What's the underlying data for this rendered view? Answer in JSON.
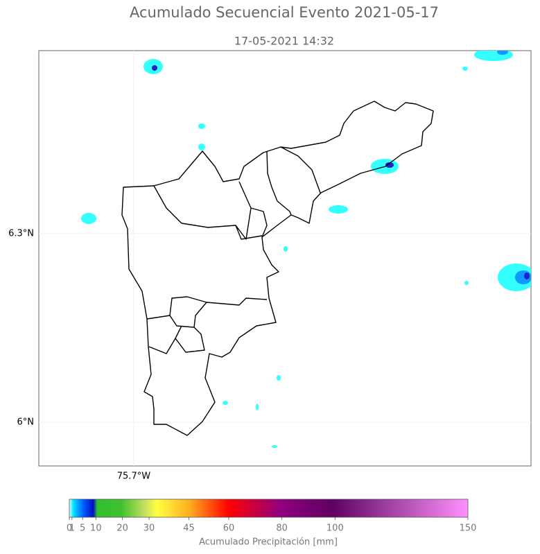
{
  "title": "Acumulado Secuencial Evento 2021-05-17",
  "subtitle": "17-05-2021 14:32",
  "map": {
    "xlim": [
      -75.851,
      -75.068
    ],
    "ylim": [
      5.9305,
      6.591
    ],
    "xticks": [
      {
        "value": -75.7,
        "label": "75.7°W"
      }
    ],
    "yticks": [
      {
        "value": 6.3,
        "label": "6.3°N"
      },
      {
        "value": 6,
        "label": "6°N"
      }
    ],
    "grid": true
  },
  "colorbar": {
    "label": "Acumulado Precipitación [mm]",
    "lim": [
      0,
      150
    ],
    "ticks": [
      0,
      1,
      5,
      10,
      20,
      30,
      45,
      60,
      80,
      100,
      150
    ]
  }
}
